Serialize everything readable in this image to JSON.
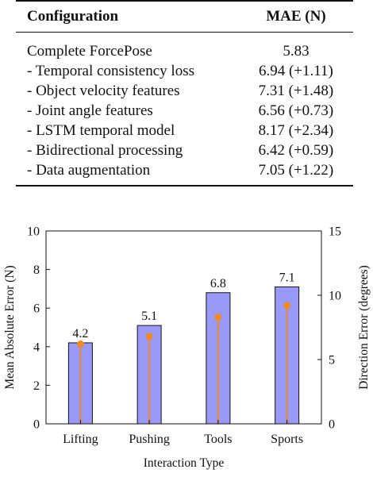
{
  "table": {
    "header": {
      "config": "Configuration",
      "mae": "MAE (N)"
    },
    "rows": [
      {
        "config": "Complete ForcePose",
        "mae": "5.83"
      },
      {
        "config": "- Temporal consistency loss",
        "mae": "6.94 (+1.11)"
      },
      {
        "config": "- Object velocity features",
        "mae": "7.31 (+1.48)"
      },
      {
        "config": "- Joint angle features",
        "mae": "6.56 (+0.73)"
      },
      {
        "config": "- LSTM temporal model",
        "mae": "8.17 (+2.34)"
      },
      {
        "config": "- Bidirectional processing",
        "mae": "6.42 (+0.59)"
      },
      {
        "config": "- Data augmentation",
        "mae": "7.05 (+1.22)"
      }
    ]
  },
  "chart_data": {
    "type": "bar",
    "categories": [
      "Lifting",
      "Pushing",
      "Tools",
      "Sports"
    ],
    "series": [
      {
        "name": "",
        "kind": "bar",
        "axis": "left",
        "values": [
          4.2,
          5.1,
          6.8,
          7.1
        ],
        "labels": [
          "4.2",
          "5.1",
          "6.8",
          "7.1"
        ],
        "color": "#9999f8"
      },
      {
        "name": "",
        "kind": "stem",
        "axis": "right",
        "values": [
          6.2,
          6.8,
          8.3,
          9.2
        ],
        "color": "#f08a24"
      }
    ],
    "xlabel": "Interaction Type",
    "ylabel": "Mean Absolute Error (N)",
    "y2label": "Direction Error (degrees)",
    "ylim": [
      0,
      10
    ],
    "y2lim": [
      0,
      15
    ],
    "yticks": [
      0,
      2,
      4,
      6,
      8,
      10
    ],
    "y2ticks": [
      0,
      5,
      10,
      15
    ],
    "grid": false
  }
}
